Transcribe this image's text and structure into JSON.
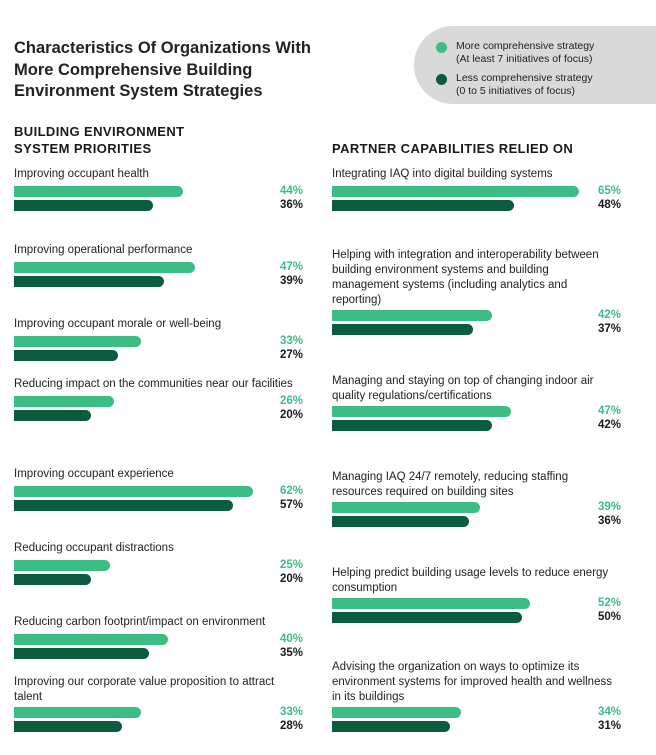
{
  "title": "Characteristics Of Organizations With More Comprehensive Building Environment System Strategies",
  "colors": {
    "more": "#3cbd84",
    "less": "#0b5b3d",
    "less_text": "#1a1a1a",
    "legend_bg": "#d9d9d9"
  },
  "legend": [
    {
      "key": "more",
      "line1": "More comprehensive strategy",
      "line2": "(At least 7 initiatives of focus)"
    },
    {
      "key": "less",
      "line1": "Less comprehensive strategy",
      "line2": "(0 to 5 initiatives of focus)"
    }
  ],
  "chart_data": [
    {
      "type": "bar",
      "title": "BUILDING ENVIRONMENT SYSTEM PRIORITIES",
      "categories": [
        "Improving occupant health",
        "Improving operational performance",
        "Improving occupant morale or well-being",
        "Reducing impact on the communities near our facilities",
        "Improving occupant experience",
        "Reducing occupant distractions",
        "Reducing carbon footprint/impact on environment",
        "Improving our corporate value proposition to attract talent"
      ],
      "series": [
        {
          "name": "More comprehensive strategy",
          "values": [
            44,
            47,
            33,
            26,
            62,
            25,
            40,
            33
          ]
        },
        {
          "name": "Less comprehensive strategy",
          "values": [
            36,
            39,
            27,
            20,
            57,
            20,
            35,
            28
          ]
        }
      ],
      "unit": "%"
    },
    {
      "type": "bar",
      "title": "PARTNER CAPABILITIES RELIED ON",
      "categories": [
        "Integrating IAQ into digital building systems",
        "Helping with integration and interoperability between building environment systems and building management systems (including analytics and reporting)",
        "Managing and staying on top of changing indoor air quality regulations/certifications",
        "Managing IAQ 24/7 remotely, reducing staffing resources required on building sites",
        "Helping predict building usage levels to reduce energy consumption",
        "Advising the organization on ways to optimize its environment systems for improved health and wellness in its buildings"
      ],
      "series": [
        {
          "name": "More comprehensive strategy",
          "values": [
            65,
            42,
            47,
            39,
            52,
            34
          ]
        },
        {
          "name": "Less comprehensive strategy",
          "values": [
            48,
            37,
            42,
            36,
            50,
            31
          ]
        }
      ],
      "unit": "%"
    }
  ]
}
